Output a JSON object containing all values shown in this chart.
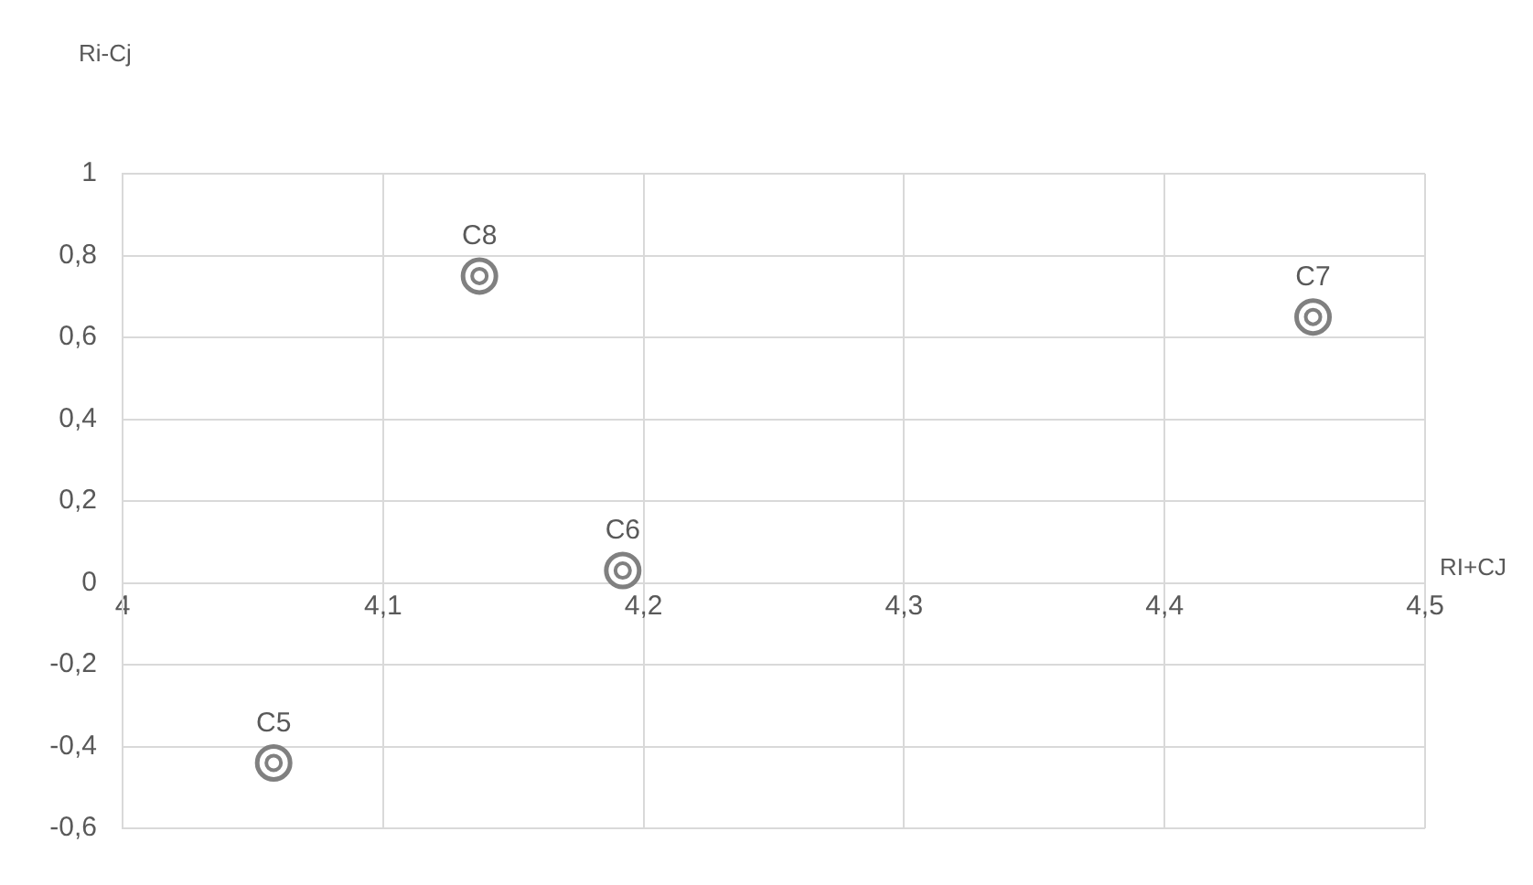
{
  "chart_data": {
    "type": "scatter",
    "xlabel": "RI+CJ",
    "ylabel": "Ri-Cj",
    "x": [
      4.058,
      4.192,
      4.457,
      4.137
    ],
    "series": [
      {
        "color": "#808080",
        "values": [
          -0.44,
          0.03,
          0.65,
          0.75
        ]
      }
    ],
    "annotations": [
      {
        "text": "C5",
        "x": 4.058,
        "y": -0.44
      },
      {
        "text": "C6",
        "x": 4.192,
        "y": 0.03
      },
      {
        "text": "C7",
        "x": 4.457,
        "y": 0.65
      },
      {
        "text": "C8",
        "x": 4.137,
        "y": 0.75
      }
    ],
    "xlim": [
      4,
      4.5
    ],
    "xticks": [
      4,
      {
        "value": 4.1,
        "label": "4,1"
      },
      {
        "value": 4.2,
        "label": "4,2"
      },
      {
        "value": 4.3,
        "label": "4,3"
      },
      {
        "value": 4.4,
        "label": "4,4"
      },
      {
        "value": 4.5,
        "label": "4,5"
      }
    ],
    "ylim": [
      -0.6,
      1
    ],
    "yticks": [
      {
        "value": -0.6,
        "label": "-0,6"
      },
      {
        "value": -0.4,
        "label": "-0,4"
      },
      {
        "value": -0.2,
        "label": "-0,2"
      },
      0,
      {
        "value": 0.2,
        "label": "0,2"
      },
      {
        "value": 0.4,
        "label": "0,4"
      },
      {
        "value": 0.6,
        "label": "0,6"
      },
      {
        "value": 0.8,
        "label": "0,8"
      },
      1
    ],
    "grid": true,
    "marker": "circle",
    "legend": false
  }
}
